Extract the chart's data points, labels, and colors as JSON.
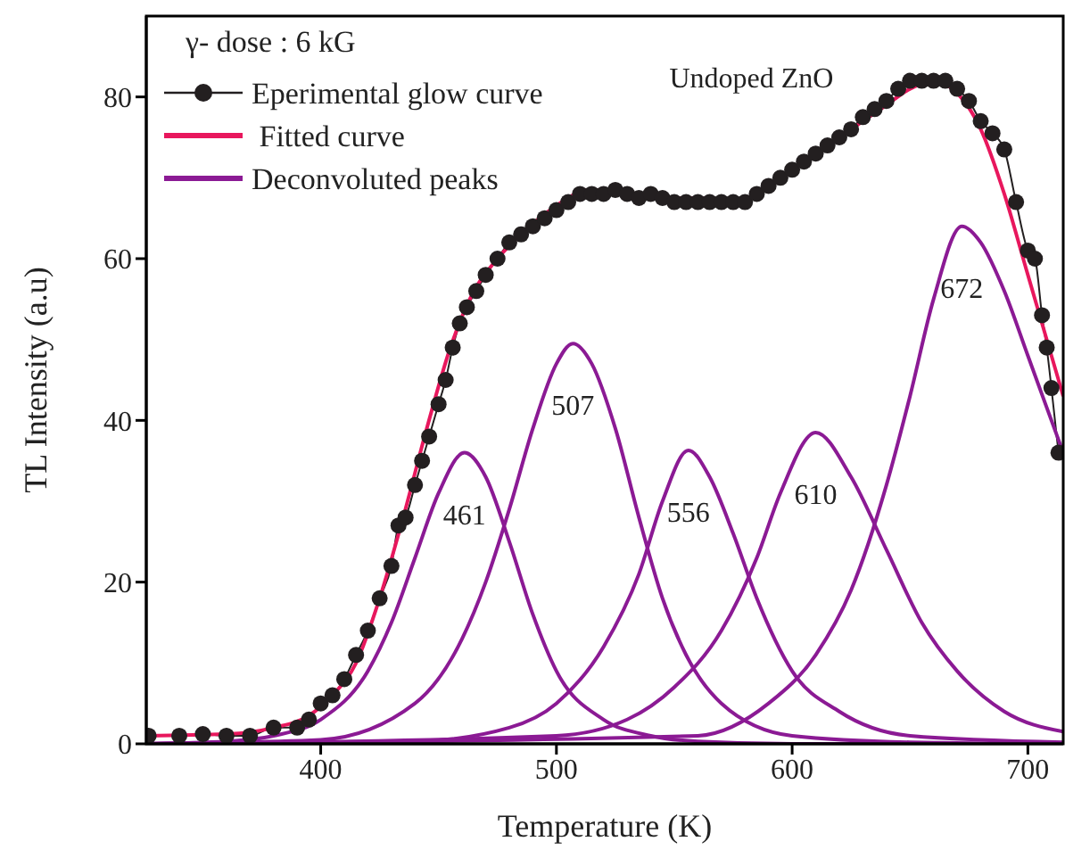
{
  "chart_data": {
    "type": "line",
    "xlabel": "Temperature (K)",
    "ylabel": "TL Intensity (a.u)",
    "legend_title": "γ- dose : 6 kG",
    "xlim": [
      326,
      715
    ],
    "ylim": [
      0,
      90
    ],
    "xticks": [
      400,
      500,
      600,
      700
    ],
    "yticks": [
      0,
      20,
      40,
      60,
      80
    ],
    "grid": false,
    "legend": "top left",
    "annotations": [
      "Undoped ZnO",
      {
        "text": "461",
        "x": 461,
        "y": 36
      },
      {
        "text": "507",
        "x": 507,
        "y": 49.5
      },
      {
        "text": "556",
        "x": 556,
        "y": 36.3
      },
      {
        "text": "610",
        "x": 610,
        "y": 38.5
      },
      {
        "text": "672",
        "x": 672,
        "y": 64
      }
    ],
    "series": [
      {
        "name": "Eperimental glow curve",
        "color": "#231f20",
        "marker": "circle",
        "x": [
          327,
          340,
          350,
          360,
          370,
          380,
          390,
          395,
          400,
          405,
          410,
          415,
          420,
          425,
          430,
          433,
          436,
          440,
          443,
          446,
          450,
          453,
          456,
          459,
          462,
          466,
          470,
          475,
          480,
          485,
          490,
          495,
          500,
          505,
          510,
          515,
          520,
          525,
          530,
          535,
          540,
          545,
          550,
          555,
          560,
          565,
          570,
          575,
          580,
          585,
          590,
          595,
          600,
          605,
          610,
          615,
          620,
          625,
          630,
          635,
          640,
          645,
          650,
          655,
          660,
          665,
          670,
          675,
          680,
          685,
          690,
          695,
          700,
          703,
          706,
          708,
          710,
          713
        ],
        "values": [
          1,
          1,
          1.2,
          1,
          1,
          2,
          2,
          3,
          5,
          6,
          8,
          11,
          14,
          18,
          22,
          27,
          28,
          32,
          35,
          38,
          42,
          45,
          49,
          52,
          54,
          56,
          58,
          60,
          62,
          63,
          64,
          65,
          66,
          67,
          68,
          68,
          68,
          68.5,
          68,
          67.5,
          68,
          67.5,
          67,
          67,
          67,
          67,
          67,
          67,
          67,
          68,
          69,
          70,
          71,
          72,
          73,
          74,
          75,
          76,
          77.5,
          78.5,
          79.5,
          81,
          82,
          82,
          82,
          82,
          81,
          79.5,
          77,
          75.5,
          73.5,
          67,
          61,
          60,
          53,
          49,
          44,
          36
        ]
      },
      {
        "name": " Fitted curve",
        "color": "#e8175d",
        "marker": "none",
        "x": [
          326,
          360,
          380,
          395,
          405,
          415,
          425,
          435,
          445,
          455,
          465,
          475,
          485,
          495,
          505,
          512,
          520,
          540,
          560,
          575,
          585,
          600,
          620,
          640,
          650,
          660,
          668,
          680,
          690,
          700,
          710,
          715
        ],
        "values": [
          1,
          1.2,
          2,
          3.5,
          6,
          10,
          18,
          28,
          39,
          49,
          56,
          60,
          63,
          65.5,
          67.5,
          68.5,
          68.5,
          67.5,
          67.5,
          67,
          68,
          71,
          75,
          79,
          81,
          82,
          81,
          76,
          68,
          58,
          48,
          43
        ]
      },
      {
        "name": "Deconvoluted peaks",
        "color": "#8b1a94",
        "marker": "none",
        "x": [
          326,
          360,
          380,
          400,
          420,
          430,
          440,
          450,
          461,
          470,
          480,
          490,
          500,
          520,
          540,
          560,
          600,
          715
        ],
        "values": [
          0,
          0.3,
          1,
          3,
          9,
          15,
          23,
          31,
          36,
          33,
          25,
          16,
          9,
          3,
          1,
          0.3,
          0,
          0
        ]
      },
      {
        "color": "#8b1a94",
        "marker": "none",
        "x": [
          326,
          400,
          440,
          460,
          470,
          480,
          490,
          500,
          507,
          515,
          525,
          535,
          545,
          555,
          570,
          600,
          650,
          715
        ],
        "values": [
          0,
          0.5,
          5,
          13,
          20,
          29,
          39,
          47,
          49.5,
          47,
          39,
          28,
          18,
          11,
          5,
          1,
          0.2,
          0
        ]
      },
      {
        "color": "#8b1a94",
        "marker": "none",
        "x": [
          326,
          440,
          480,
          500,
          520,
          535,
          545,
          556,
          565,
          575,
          585,
          600,
          620,
          650,
          715
        ],
        "values": [
          0,
          0.3,
          2,
          5,
          12,
          21,
          30,
          36.3,
          33,
          26,
          18,
          9,
          4,
          1,
          0.2
        ]
      },
      {
        "color": "#8b1a94",
        "marker": "none",
        "x": [
          326,
          500,
          530,
          550,
          570,
          585,
          595,
          610,
          625,
          640,
          655,
          670,
          690,
          715
        ],
        "values": [
          0,
          1,
          3,
          7,
          14,
          23,
          31,
          38.5,
          33,
          24,
          15,
          9,
          4,
          1.5
        ]
      },
      {
        "color": "#8b1a94",
        "marker": "none",
        "x": [
          326,
          560,
          590,
          610,
          625,
          640,
          650,
          660,
          672,
          680,
          690,
          700,
          710,
          715
        ],
        "values": [
          0,
          1,
          5,
          11,
          19,
          32,
          43,
          55,
          64,
          62,
          56,
          48,
          40,
          36
        ]
      }
    ]
  }
}
